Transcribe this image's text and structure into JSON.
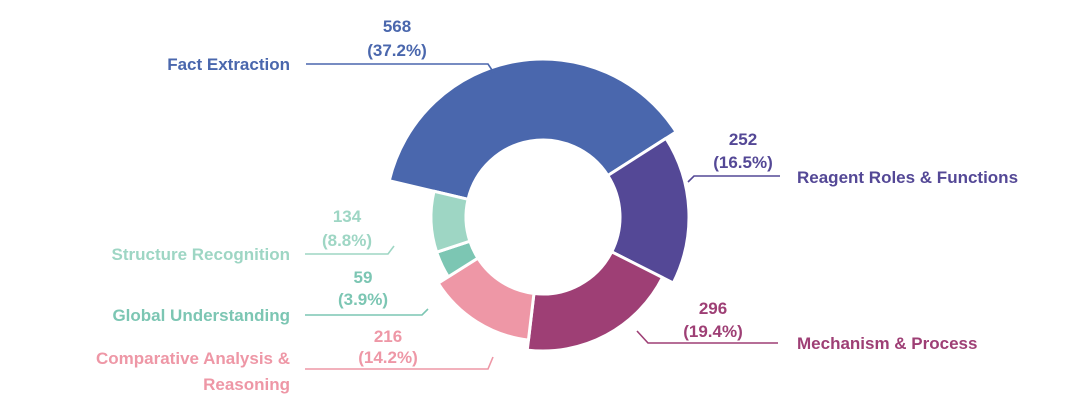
{
  "chart_data": {
    "type": "pie",
    "title": "",
    "legend": "none",
    "slices": [
      {
        "category": "Fact Extraction",
        "category_lines": [
          "Fact Extraction"
        ],
        "value": 568,
        "value_label": "568",
        "percent_label": "(37.2%)",
        "color": "#4A67AD"
      },
      {
        "category": "Reagent Roles & Functions",
        "category_lines": [
          "Reagent Roles & Functions"
        ],
        "value": 252,
        "value_label": "252",
        "percent_label": "(16.5%)",
        "color": "#544896"
      },
      {
        "category": "Mechanism & Process",
        "category_lines": [
          "Mechanism & Process"
        ],
        "value": 296,
        "value_label": "296",
        "percent_label": "(19.4%)",
        "color": "#9E3F75"
      },
      {
        "category": "Comparative Analysis & Reasoning",
        "category_lines": [
          "Comparative Analysis &",
          "Reasoning"
        ],
        "value": 216,
        "value_label": "216",
        "percent_label": "(14.2%)",
        "color": "#EE97A6"
      },
      {
        "category": "Global Understanding",
        "category_lines": [
          "Global Understanding"
        ],
        "value": 59,
        "value_label": "59",
        "percent_label": "(3.9%)",
        "color": "#7CC6B3"
      },
      {
        "category": "Structure Recognition",
        "category_lines": [
          "Structure Recognition"
        ],
        "value": 134,
        "value_label": "134",
        "percent_label": "(8.8%)",
        "color": "#9ED6C4"
      }
    ]
  }
}
